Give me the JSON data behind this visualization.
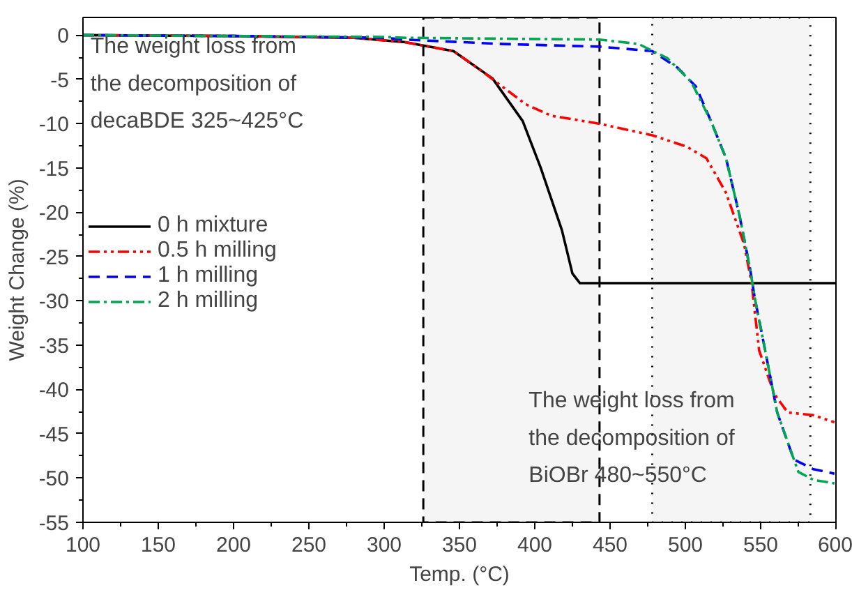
{
  "chart_data": {
    "type": "line",
    "xlabel": "Temp. (°C)",
    "ylabel": "Weight Change (%)",
    "xlim": [
      100,
      600
    ],
    "ylim": [
      -55,
      2
    ],
    "xticks": [
      100,
      150,
      200,
      250,
      300,
      350,
      400,
      450,
      500,
      550,
      600
    ],
    "yticks": [
      0,
      -5,
      -10,
      -15,
      -20,
      -25,
      -30,
      -35,
      -40,
      -45,
      -50,
      -55
    ],
    "grid": false,
    "legend": "left",
    "marker": "none",
    "series": [
      {
        "name": "0 h mixture",
        "color": "#000000",
        "line_style": "solid",
        "x": [
          100,
          200,
          280,
          314,
          346,
          372,
          392,
          404,
          418,
          425,
          430,
          600
        ],
        "values": [
          0,
          -0.1,
          -0.3,
          -0.8,
          -1.8,
          -4.9,
          -9.7,
          -15,
          -22,
          -26.9,
          -28,
          -28
        ]
      },
      {
        "name": "0.5 h milling",
        "color": "#ff0000",
        "line_style": "dashdotdot",
        "x": [
          100,
          200,
          280,
          314,
          346,
          362,
          394,
          411,
          443,
          478,
          501,
          514,
          527,
          539,
          544,
          549,
          559,
          568,
          585,
          599
        ],
        "values": [
          0,
          -0.1,
          -0.3,
          -0.8,
          -1.8,
          -3.7,
          -7.8,
          -9.1,
          -10,
          -11.3,
          -12.6,
          -13.9,
          -17.8,
          -23.6,
          -28,
          -35.6,
          -40.5,
          -42.6,
          -42.9,
          -43.7
        ]
      },
      {
        "name": "1 h milling",
        "color": "#0000ff",
        "line_style": "dashed",
        "x": [
          100,
          200,
          300,
          314,
          379,
          443,
          478,
          495,
          507,
          517,
          527,
          536,
          543,
          546,
          553,
          561,
          572,
          585,
          599
        ],
        "values": [
          0,
          -0.1,
          -0.3,
          -0.5,
          -1.0,
          -1.3,
          -1.8,
          -3.7,
          -5.8,
          -9.7,
          -13.9,
          -20.4,
          -26.4,
          -29.6,
          -35.6,
          -42.6,
          -47.9,
          -49,
          -49.5
        ]
      },
      {
        "name": "2 h milling",
        "color": "#00a651",
        "line_style": "dashdot",
        "x": [
          100,
          200,
          300,
          314,
          443,
          469,
          488,
          504,
          517,
          527,
          536,
          543,
          546,
          553,
          561,
          575,
          585,
          599
        ],
        "values": [
          0,
          -0.1,
          -0.2,
          -0.3,
          -0.5,
          -1.0,
          -2.6,
          -5.3,
          -9.7,
          -13.9,
          -20.4,
          -26.4,
          -29.6,
          -35.6,
          -42.6,
          -49.3,
          -50.2,
          -50.6
        ]
      }
    ],
    "bands": [
      {
        "axis": "x",
        "from": 326,
        "to": 443,
        "color": "#000000"
      },
      {
        "axis": "x",
        "from": 478,
        "to": 583,
        "color": "#000000"
      }
    ],
    "annotations": [
      "The weight loss from\nthe decomposition of\ndecaBDE 325~425°C",
      "The weight loss from\nthe decomposition of\nBiOBr 480~550°C"
    ]
  }
}
